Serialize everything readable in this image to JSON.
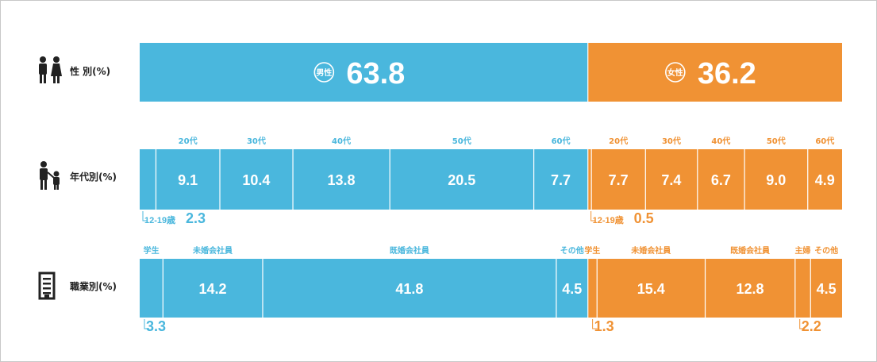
{
  "colors": {
    "male": "#4ab7dd",
    "female": "#f09234"
  },
  "rows": [
    {
      "label": "性 別(%)",
      "icon": "couple-icon"
    },
    {
      "label": "年代別(%)",
      "icon": "parent-child-icon"
    },
    {
      "label": "職業別(%)",
      "icon": "building-icon"
    }
  ],
  "chart_data": [
    {
      "type": "bar",
      "title": "性 別(%)",
      "series": [
        {
          "name": "男性",
          "values": [
            63.8
          ]
        },
        {
          "name": "女性",
          "values": [
            36.2
          ]
        }
      ]
    },
    {
      "type": "bar",
      "title": "年代別(%)",
      "series": [
        {
          "name": "男性",
          "categories": [
            "12-19歳",
            "20代",
            "30代",
            "40代",
            "50代",
            "60代"
          ],
          "values": [
            2.3,
            9.1,
            10.4,
            13.8,
            20.5,
            7.7
          ]
        },
        {
          "name": "女性",
          "categories": [
            "12-19歳",
            "20代",
            "30代",
            "40代",
            "50代",
            "60代"
          ],
          "values": [
            0.5,
            7.7,
            7.4,
            6.7,
            9.0,
            4.9
          ]
        }
      ]
    },
    {
      "type": "bar",
      "title": "職業別(%)",
      "series": [
        {
          "name": "男性",
          "categories": [
            "学生",
            "未婚会社員",
            "既婚会社員",
            "その他"
          ],
          "values": [
            3.3,
            14.2,
            41.8,
            4.5
          ]
        },
        {
          "name": "女性",
          "categories": [
            "学生",
            "未婚会社員",
            "既婚会社員",
            "主婦",
            "その他"
          ],
          "values": [
            1.3,
            15.4,
            12.8,
            2.2,
            4.5
          ]
        }
      ]
    }
  ]
}
